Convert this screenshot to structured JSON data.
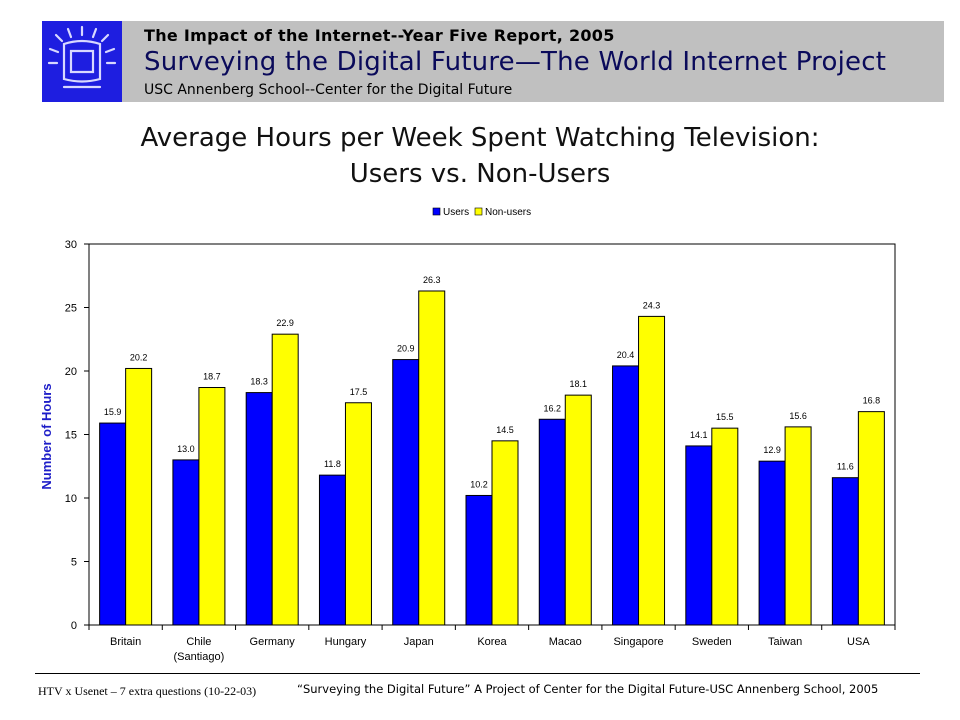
{
  "header": {
    "report_title": "The Impact of the Internet--Year Five Report, 2005",
    "main_title": "Surveying the Digital Future—The World Internet Project",
    "subtitle": "USC Annenberg School--Center for the Digital Future"
  },
  "footer": {
    "left": "HTV x Usenet – 7 extra questions (10-22-03)",
    "right": "“Surveying the Digital Future” A Project of Center for the Digital Future-USC Annenberg School, 2005"
  },
  "colors": {
    "users": "#0000ff",
    "non_users": "#ffff00",
    "header_band": "#c0c0c0",
    "logo_bg": "#1e1ee0",
    "axis_label": "#1e1ec8"
  },
  "icons": {
    "logo": "screen-logo-icon"
  },
  "chart_data": {
    "type": "bar",
    "title": "Average Hours per Week Spent Watching Television: Users vs. Non-Users",
    "title_lines": [
      "Average Hours per Week Spent Watching Television:",
      "Users vs. Non-Users"
    ],
    "ylabel": "Number of Hours",
    "xlabel": "",
    "ylim": [
      0,
      30
    ],
    "yticks": [
      0,
      5,
      10,
      15,
      20,
      25,
      30
    ],
    "grid": false,
    "legend_position": "top-center",
    "categories": [
      [
        "Britain"
      ],
      [
        "Chile",
        "(Santiago)"
      ],
      [
        "Germany"
      ],
      [
        "Hungary"
      ],
      [
        "Japan"
      ],
      [
        "Korea"
      ],
      [
        "Macao"
      ],
      [
        "Singapore"
      ],
      [
        "Sweden"
      ],
      [
        "Taiwan"
      ],
      [
        "USA"
      ]
    ],
    "series": [
      {
        "name": "Users",
        "color": "#0000ff",
        "values": [
          15.9,
          13.0,
          18.3,
          11.8,
          20.9,
          10.2,
          16.2,
          20.4,
          14.1,
          12.9,
          11.6
        ],
        "labels": [
          "15.9",
          "13.0",
          "18.3",
          "11.8",
          "20.9",
          "10.2",
          "16.2",
          "20.4",
          "14.1",
          "12.9",
          "11.6"
        ]
      },
      {
        "name": "Non-users",
        "color": "#ffff00",
        "values": [
          20.2,
          18.7,
          22.9,
          17.5,
          26.3,
          14.5,
          18.1,
          24.3,
          15.5,
          15.6,
          16.8
        ],
        "labels": [
          "20.2",
          "18.7",
          "22.9",
          "17.5",
          "26.3",
          "14.5",
          "18.1",
          "24.3",
          "15.5",
          "15.6",
          "16.8"
        ]
      }
    ]
  }
}
